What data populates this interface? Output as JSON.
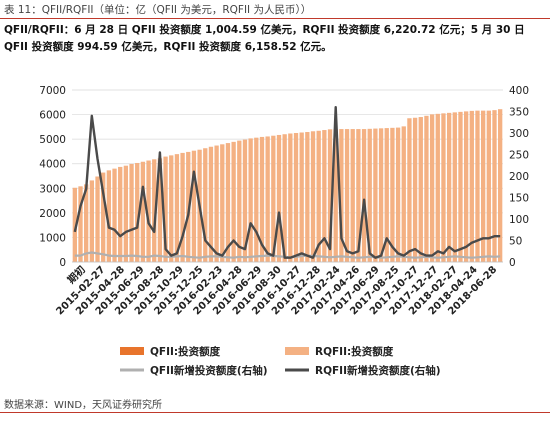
{
  "caption": "表 11：QFII/RQFII（单位：亿（QFII 为美元，RQFII 为人民币））",
  "summary": "QFII/RQFII：6 月 28 日 QFII 投资额度 1,004.59 亿美元，RQFII 投资额度 6,220.72 亿元；5 月 30 日 QFII 投资额度 994.59 亿美元，RQFII 投资额度 6,158.52 亿元。",
  "source": "数据来源：WIND，天风证券研究所",
  "colors": {
    "qfii_bar": "#e8742c",
    "rqfii_bar": "#f4b183",
    "qfii_new": "#b0b0b0",
    "rqfii_new": "#4a4a4a",
    "accent_rule": "#c0392b"
  },
  "chart_data": {
    "type": "bar",
    "x_labels": [
      "期初",
      "2015-02-27",
      "2015-04-28",
      "2015-06-29",
      "2015-08-28",
      "2015-10-29",
      "2015-12-25",
      "2016-02-23",
      "2016-04-28",
      "2016-06-29",
      "2016-08-30",
      "2016-10-27",
      "2016-12-28",
      "2017-02-24",
      "2017-04-26",
      "2017-06-29",
      "2017-08-25",
      "2017-10-27",
      "2017-12-27",
      "2018-02-27",
      "2018-04-24",
      "2018-06-28"
    ],
    "y_left": {
      "min": 0,
      "max": 7000,
      "ticks": [
        0,
        1000,
        2000,
        3000,
        4000,
        5000,
        6000,
        7000
      ]
    },
    "y_right": {
      "min": 0,
      "max": 400,
      "ticks": [
        0,
        50,
        100,
        150,
        200,
        250,
        300,
        350,
        400
      ]
    },
    "legend": [
      {
        "name": "QFII:投资额度",
        "kind": "bar",
        "color_key": "qfii_bar"
      },
      {
        "name": "RQFII:投资额度",
        "kind": "bar",
        "color_key": "rqfii_bar"
      },
      {
        "name": "QFII新增投资额度(右轴)",
        "kind": "line",
        "color_key": "qfii_new"
      },
      {
        "name": "RQFII新增投资额度(右轴)",
        "kind": "line",
        "color_key": "rqfii_new"
      }
    ],
    "series": [
      {
        "name": "RQFII:投资额度",
        "axis": "left",
        "values": [
          3020,
          3080,
          3160,
          3320,
          3480,
          3640,
          3730,
          3800,
          3870,
          3920,
          3990,
          4030,
          4080,
          4130,
          4180,
          4220,
          4290,
          4340,
          4390,
          4440,
          4480,
          4530,
          4570,
          4630,
          4690,
          4740,
          4790,
          4840,
          4890,
          4940,
          4980,
          5030,
          5060,
          5090,
          5110,
          5140,
          5170,
          5200,
          5230,
          5250,
          5270,
          5290,
          5320,
          5340,
          5370,
          5400,
          5410,
          5410,
          5410,
          5410,
          5410,
          5410,
          5420,
          5430,
          5440,
          5450,
          5460,
          5470,
          5520,
          5850,
          5870,
          5900,
          5950,
          6010,
          6030,
          6050,
          6070,
          6090,
          6110,
          6130,
          6150,
          6160,
          6160,
          6160,
          6180,
          6220
        ]
      },
      {
        "name": "QFII新增投资额度(右轴)",
        "axis": "right",
        "values": [
          15,
          15,
          20,
          22,
          20,
          18,
          15,
          14,
          14,
          14,
          15,
          14,
          12,
          12,
          15,
          14,
          12,
          12,
          13,
          14,
          12,
          11,
          10,
          12,
          13,
          13,
          12,
          11,
          10,
          12,
          11,
          12,
          13,
          14,
          15,
          14,
          13,
          12,
          11,
          12,
          14,
          15,
          14,
          13,
          12,
          11,
          12,
          13,
          12,
          11,
          10,
          11,
          12,
          11,
          10,
          11,
          12,
          13,
          12,
          11,
          10,
          11,
          12,
          11,
          10,
          11,
          12,
          13,
          12,
          11,
          10,
          11,
          12,
          13,
          12,
          13
        ]
      },
      {
        "name": "RQFII新增投资额度(右轴)",
        "axis": "right",
        "values": [
          70,
          130,
          170,
          340,
          240,
          160,
          80,
          75,
          60,
          70,
          75,
          80,
          175,
          90,
          70,
          255,
          30,
          15,
          20,
          60,
          110,
          210,
          130,
          50,
          35,
          20,
          15,
          35,
          50,
          35,
          30,
          90,
          70,
          40,
          20,
          15,
          115,
          10,
          10,
          15,
          20,
          15,
          10,
          40,
          55,
          30,
          360,
          55,
          25,
          20,
          25,
          145,
          20,
          10,
          15,
          55,
          35,
          20,
          15,
          25,
          30,
          20,
          15,
          15,
          25,
          20,
          35,
          25,
          30,
          35,
          45,
          50,
          55,
          55,
          60,
          60
        ]
      }
    ]
  }
}
